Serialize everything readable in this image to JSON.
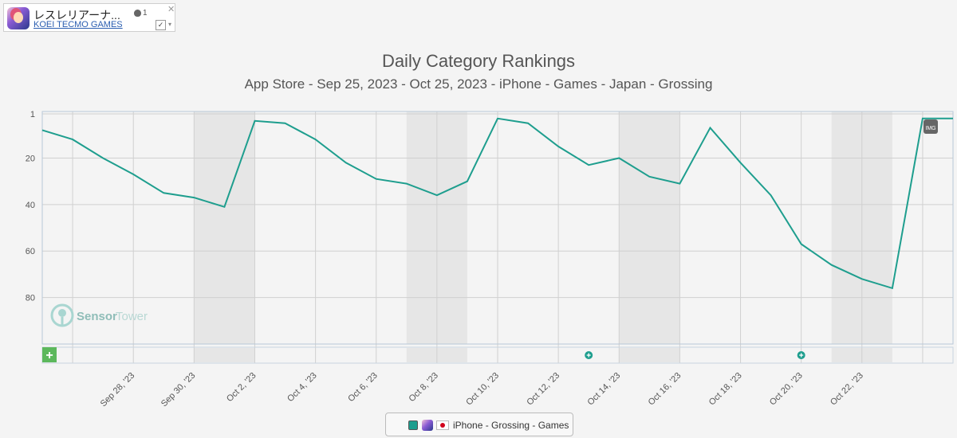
{
  "app": {
    "name": "レスレリアーナ...",
    "publisher": "KOEI TECMO GAMES",
    "store_icon": "apple-icon",
    "store_count": "1",
    "close_label": "✕",
    "check_label": "✓",
    "dropdown_label": "▾"
  },
  "chart_title": "Daily Category Rankings",
  "chart_subtitle": "App Store - Sep 25, 2023 - Oct 25, 2023 - iPhone - Games - Japan - Grossing",
  "watermark": {
    "brand1": "Sensor",
    "brand2": "Tower"
  },
  "add_button_label": "+",
  "img_marker_label": "IMG",
  "legend_label": "iPhone - Grossing - Games",
  "colors": {
    "series": "#1e9e8e",
    "grid": "#d0d0d0",
    "weekend": "#e6e6e6",
    "frame": "#b8c8d8"
  },
  "chart_data": {
    "type": "line",
    "title": "Daily Category Rankings",
    "subtitle": "App Store - Sep 25, 2023 - Oct 25, 2023 - iPhone - Games - Japan - Grossing",
    "y_inverted": true,
    "ylim": [
      1,
      100
    ],
    "yticks": [
      1,
      20,
      40,
      60,
      80
    ],
    "x_tick_labels": [
      "Sep 28, '23",
      "Sep 30, '23",
      "Oct 2, '23",
      "Oct 4, '23",
      "Oct 6, '23",
      "Oct 8, '23",
      "Oct 10, '23",
      "Oct 12, '23",
      "Oct 14, '23",
      "Oct 16, '23",
      "Oct 18, '23",
      "Oct 20, '23",
      "Oct 22, '23"
    ],
    "series": [
      {
        "name": "iPhone - Grossing - Games",
        "x": [
          "2023-09-25",
          "2023-09-26",
          "2023-09-27",
          "2023-09-28",
          "2023-09-29",
          "2023-09-30",
          "2023-10-01",
          "2023-10-02",
          "2023-10-03",
          "2023-10-04",
          "2023-10-05",
          "2023-10-06",
          "2023-10-07",
          "2023-10-08",
          "2023-10-09",
          "2023-10-10",
          "2023-10-11",
          "2023-10-12",
          "2023-10-13",
          "2023-10-14",
          "2023-10-15",
          "2023-10-16",
          "2023-10-17",
          "2023-10-18",
          "2023-10-19",
          "2023-10-20",
          "2023-10-21",
          "2023-10-22",
          "2023-10-23",
          "2023-10-24",
          "2023-10-25"
        ],
        "values": [
          8,
          12,
          20,
          27,
          35,
          37,
          41,
          4,
          5,
          12,
          22,
          29,
          31,
          36,
          30,
          3,
          5,
          15,
          23,
          20,
          28,
          31,
          7,
          22,
          36,
          57,
          66,
          72,
          76,
          3,
          3
        ]
      }
    ],
    "grid": true,
    "legend_position": "bottom"
  }
}
